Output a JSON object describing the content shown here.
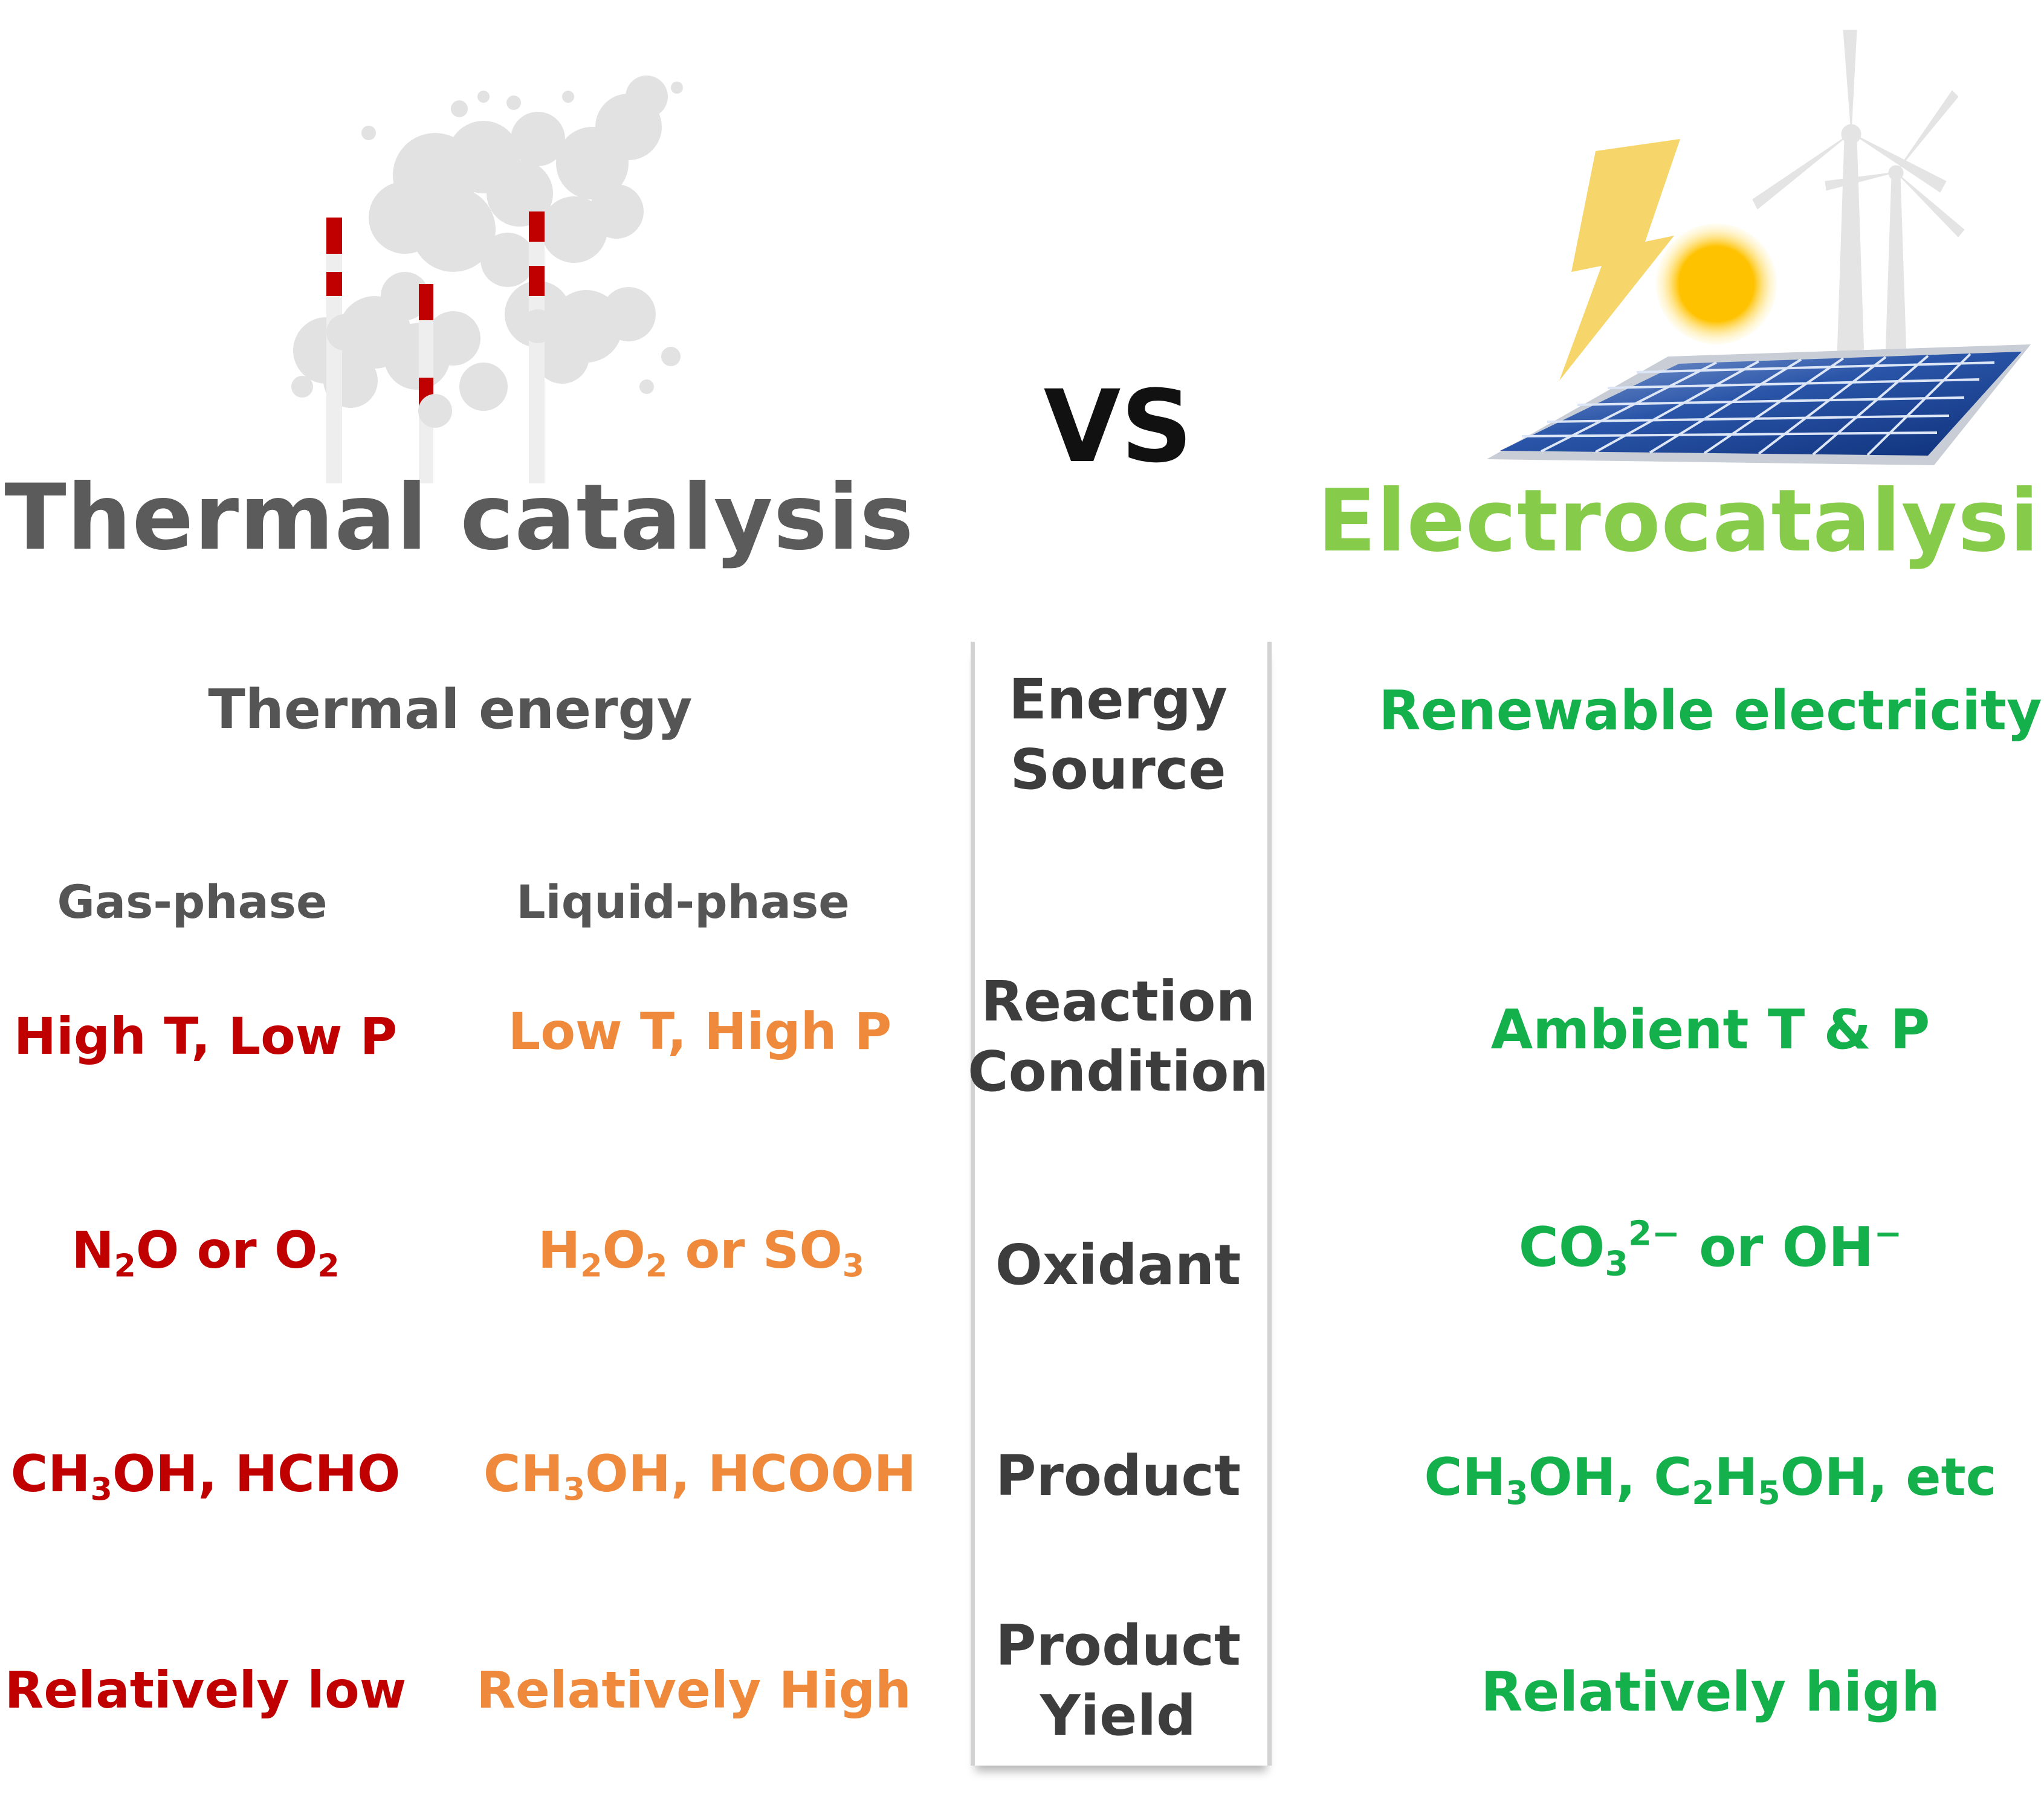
{
  "left": {
    "title": "Thermal catalysis",
    "energy_source": "Thermal energy",
    "phase_headers": [
      "Gas-phase",
      "Liquid-phase"
    ],
    "reaction_condition": [
      "High T, Low P",
      "Low T, High P"
    ],
    "product_yield": [
      "Relatively low",
      "Relatively High"
    ]
  },
  "vs": "VS",
  "right": {
    "title": "Electrocatalysis",
    "energy_source": "Renewable electricity",
    "reaction_condition": "Ambient T & P",
    "product_yield": "Relatively high"
  },
  "center": {
    "energy_source": [
      "Energy",
      "Source"
    ],
    "reaction_condition": [
      "Reaction",
      "Condition"
    ],
    "oxidant": "Oxidant",
    "product": "Product",
    "product_yield": [
      "Product",
      "Yield"
    ]
  },
  "formulas": {
    "gas_oxidant": "N₂O or O₂",
    "liquid_oxidant": "H₂O₂ or SO₃",
    "electro_oxidant": "CO₃²⁻ or OH⁻",
    "gas_product": "CH₃OH, HCHO",
    "liquid_product": "CH₃OH, HCOOH",
    "electro_product": "CH₃OH, C₂H₅OH, etc"
  },
  "colors": {
    "thermal_title": "#5b5b5b",
    "electro_title": "#86cc4a",
    "gas_phase": "#c00000",
    "liquid_phase": "#ef8a3c",
    "electro": "#14b04c"
  },
  "icons": [
    "factory-smokestack-icon",
    "lightning-bolt-icon",
    "sun-icon",
    "wind-turbine-icon",
    "solar-panel-icon"
  ]
}
